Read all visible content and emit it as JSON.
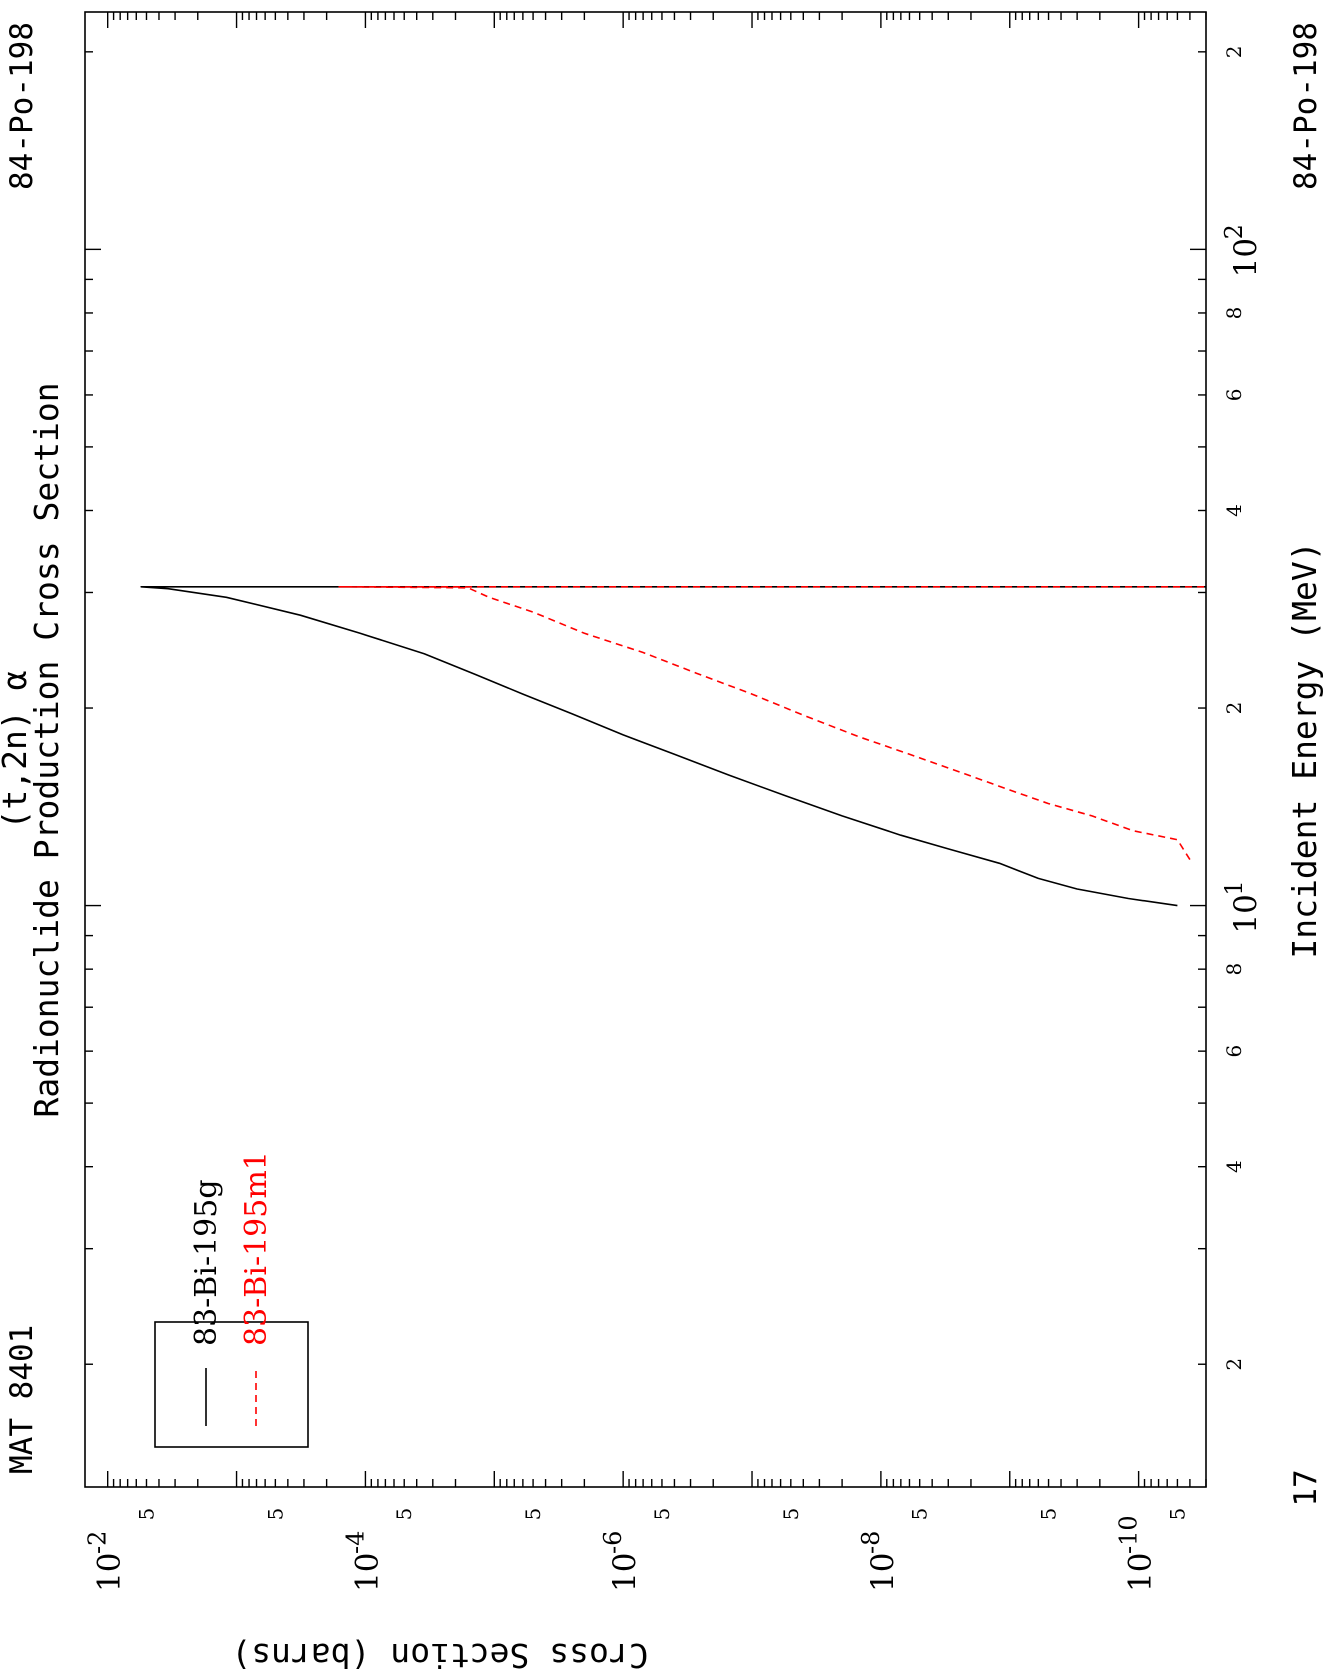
{
  "chart_data": {
    "type": "line",
    "orientation": "rotated-90-clockwise",
    "title": "Radionuclide Production Cross Section",
    "subtitle": "(t,2n) α",
    "xlabel": "Incident Energy (MeV)",
    "ylabel": "Cross Section (barns)",
    "x_scale": "log",
    "y_scale": "log",
    "xlim": [
      1.3,
      230
    ],
    "ylim": [
      3e-11,
      0.015
    ],
    "grid": false,
    "legend_position": "bottom-left",
    "annotations": {
      "mat": "MAT 8401",
      "target_top": "84-Po-198",
      "target_bottom": "84-Po-198",
      "page_number": "17"
    },
    "x_ticks": {
      "major": [
        {
          "value": 10,
          "base": "10",
          "exp": "1"
        },
        {
          "value": 100,
          "base": "10",
          "exp": "2"
        }
      ],
      "minor_labels": [
        {
          "value": 2,
          "label": "2"
        },
        {
          "value": 4,
          "label": "4"
        },
        {
          "value": 6,
          "label": "6"
        },
        {
          "value": 8,
          "label": "8"
        },
        {
          "value": 20,
          "label": "2"
        },
        {
          "value": 40,
          "label": "4"
        },
        {
          "value": 60,
          "label": "6"
        },
        {
          "value": 80,
          "label": "8"
        },
        {
          "value": 200,
          "label": "2"
        }
      ]
    },
    "y_ticks": {
      "major": [
        {
          "value": 0.01,
          "base": "10",
          "exp": "-2"
        },
        {
          "value": 0.0001,
          "base": "10",
          "exp": "-4"
        },
        {
          "value": 1e-06,
          "base": "10",
          "exp": "-6"
        },
        {
          "value": 1e-08,
          "base": "10",
          "exp": "-8"
        },
        {
          "value": 1e-10,
          "base": "10",
          "exp": "-10"
        }
      ],
      "minor_label": "5"
    },
    "series": [
      {
        "name": "83-Bi-195g",
        "color": "#000000",
        "dash": "solid",
        "x": [
          10.0,
          10.25,
          10.6,
          11.0,
          11.6,
          12.2,
          12.8,
          13.7,
          14.7,
          15.8,
          17.0,
          18.2,
          19.6,
          21.0,
          22.5,
          24.2,
          26.0,
          27.7,
          29.5,
          30.4,
          30.6,
          30.6
        ],
        "y": [
          5e-11,
          1.2e-10,
          3e-10,
          6e-10,
          1.2e-09,
          3e-09,
          7e-09,
          2e-08,
          5.5e-08,
          1.5e-07,
          4e-07,
          1e-06,
          2.5e-06,
          6e-06,
          1.4e-05,
          3.5e-05,
          0.00011,
          0.00032,
          0.0012,
          0.0034,
          0.0055,
          3e-11
        ]
      },
      {
        "name": "83-Bi-195m1",
        "color": "#ff0000",
        "dash": "dashed",
        "x": [
          11.75,
          12.6,
          13.0,
          13.7,
          14.3,
          15.1,
          16.0,
          17.0,
          18.1,
          19.5,
          21.0,
          22.6,
          24.3,
          26.0,
          28.0,
          29.5,
          30.5,
          30.6,
          30.6
        ],
        "y": [
          4e-11,
          5e-11,
          1.1e-10,
          2.3e-10,
          5e-10,
          1.1e-09,
          2.5e-09,
          6e-09,
          1.5e-08,
          4e-08,
          1e-07,
          2.7e-07,
          7e-07,
          2e-06,
          5e-06,
          1.1e-05,
          1.6e-05,
          0.00016,
          3e-11
        ]
      }
    ]
  }
}
